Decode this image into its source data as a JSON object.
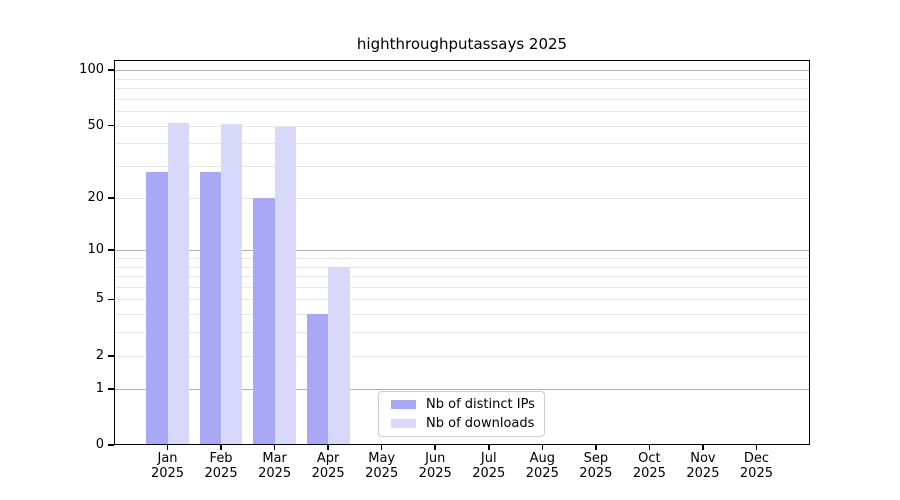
{
  "chart_data": {
    "type": "bar",
    "title": "highthroughputassays 2025",
    "categories": [
      "Jan 2025",
      "Feb 2025",
      "Mar 2025",
      "Apr 2025",
      "May 2025",
      "Jun 2025",
      "Jul 2025",
      "Aug 2025",
      "Sep 2025",
      "Oct 2025",
      "Nov 2025",
      "Dec 2025"
    ],
    "series": [
      {
        "name": "Nb of distinct IPs",
        "color": "#a8a8f7",
        "values": [
          28,
          28,
          20,
          4,
          0,
          0,
          0,
          0,
          0,
          0,
          0,
          0
        ]
      },
      {
        "name": "Nb of downloads",
        "color": "#d8d8fa",
        "values": [
          52,
          51,
          49,
          8,
          0,
          0,
          0,
          0,
          0,
          0,
          0,
          0
        ]
      }
    ],
    "y_scale": "log10(1+x)",
    "y_tick_values": [
      0,
      1,
      2,
      5,
      10,
      20,
      50,
      100
    ],
    "ylim": [
      0,
      114
    ],
    "grid": {
      "major": [
        1,
        10,
        100
      ],
      "minor": [
        2,
        3,
        4,
        5,
        6,
        7,
        8,
        9,
        20,
        30,
        40,
        50,
        60,
        70,
        80,
        90
      ]
    },
    "legend_position": "lower center",
    "colors": {
      "axis": "#000000",
      "grid_major": "#b0b0b0",
      "grid_minor": "#e7e7e7",
      "background": "#ffffff"
    }
  }
}
